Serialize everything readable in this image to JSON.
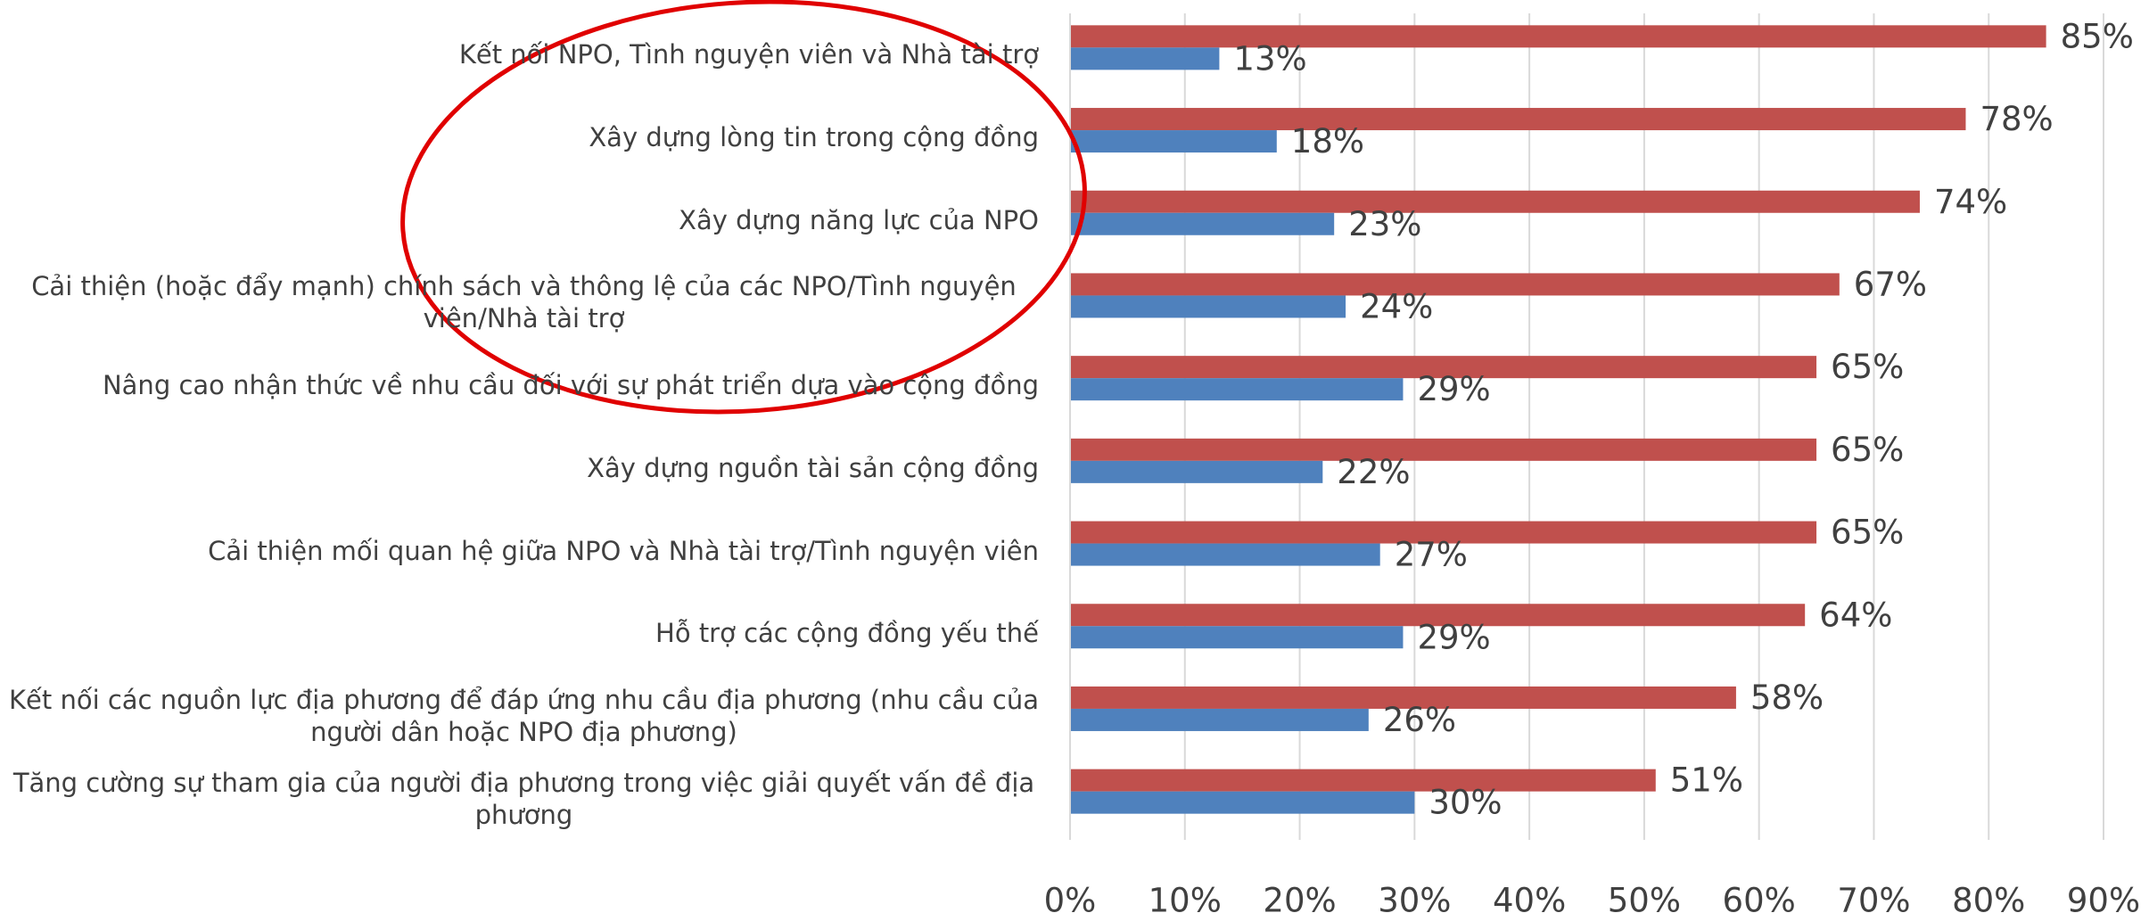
{
  "chart_data": {
    "type": "hbar",
    "categories": [
      "Kết nối NPO, Tình nguyện viên và Nhà tài trợ",
      "Xây dựng lòng tin trong cộng đồng",
      "Xây dựng năng lực của NPO",
      "Cải thiện (hoặc đẩy mạnh) chính sách và thông lệ của các NPO/Tình nguyện viên/Nhà tài trợ",
      "Nâng cao nhận thức về nhu cầu đối với sự phát triển dựa vào cộng đồng",
      "Xây dựng nguồn tài sản cộng đồng",
      "Cải thiện mối quan hệ giữa NPO và Nhà tài trợ/Tình nguyện viên",
      "Hỗ trợ các cộng đồng yếu thế",
      "Kết nối các nguồn lực địa phương để đáp ứng nhu cầu địa phương (nhu cầu của người dân hoặc NPO địa phương)",
      "Tăng cường sự tham gia của người địa phương trong việc giải quyết vấn đề địa phương"
    ],
    "series": [
      {
        "color": "#c0504d",
        "values": [
          85,
          78,
          74,
          67,
          65,
          65,
          65,
          64,
          58,
          51
        ],
        "value_labels": [
          "85%",
          "78%",
          "74%",
          "67%",
          "65%",
          "65%",
          "65%",
          "64%",
          "58%",
          "51%"
        ]
      },
      {
        "color": "#4f81bd",
        "values": [
          13,
          18,
          23,
          24,
          29,
          22,
          27,
          29,
          26,
          30
        ],
        "value_labels": [
          "13%",
          "18%",
          "23%",
          "24%",
          "29%",
          "22%",
          "27%",
          "29%",
          "26%",
          "30%"
        ]
      }
    ],
    "xlim": [
      0,
      90
    ],
    "xticks": [
      {
        "value": 0,
        "label": "0%"
      },
      {
        "value": 10,
        "label": "10%"
      },
      {
        "value": 20,
        "label": "20%"
      },
      {
        "value": 30,
        "label": "30%"
      },
      {
        "value": 40,
        "label": "40%"
      },
      {
        "value": 50,
        "label": "50%"
      },
      {
        "value": 60,
        "label": "60%"
      },
      {
        "value": 70,
        "label": "70%"
      },
      {
        "value": 80,
        "label": "80%"
      },
      {
        "value": 90,
        "label": "90%"
      }
    ],
    "grid": true
  }
}
